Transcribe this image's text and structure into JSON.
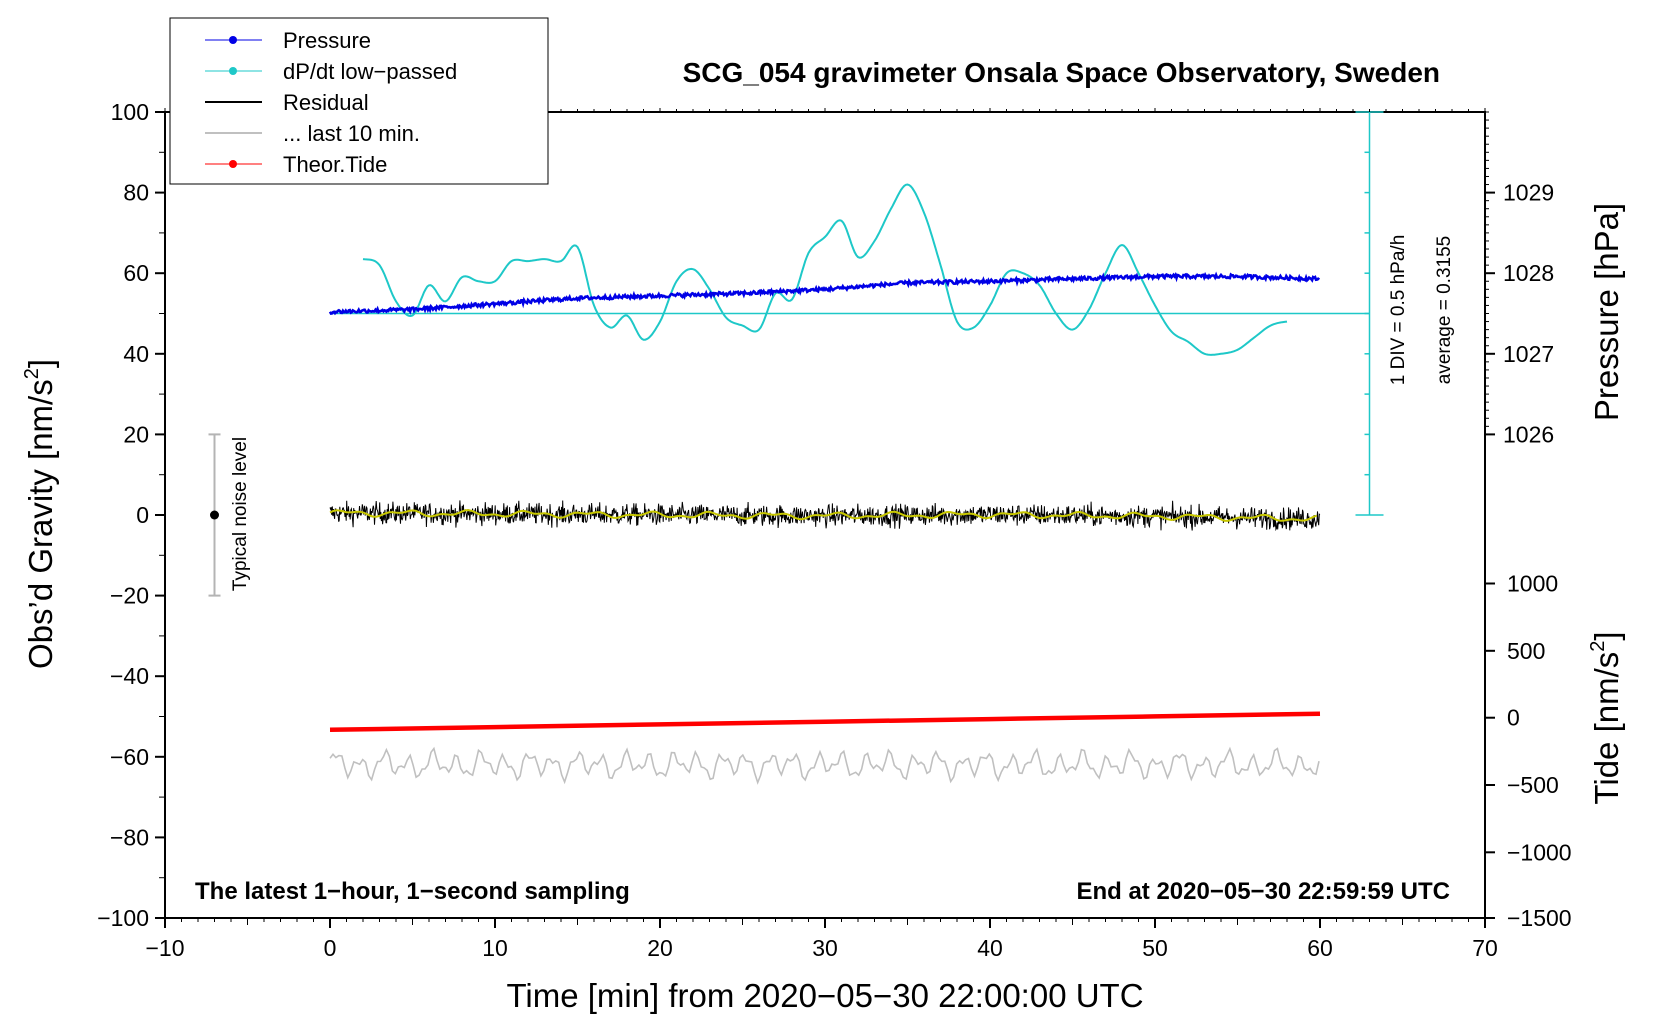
{
  "chart_data": {
    "type": "line",
    "title": "SCG_054 gravimeter Onsala Space Observatory, Sweden",
    "xlabel": "Time [min] from 2020−05−30 22:00:00 UTC",
    "ylabel_left": "Obs’d Gravity [nm/s²]",
    "ylabel_right_pressure": "Pressure [hPa]",
    "ylabel_right_tide": "Tide [nm/s²]",
    "xlim": [
      -10,
      70
    ],
    "ylim": [
      -100,
      100
    ],
    "x_ticks": [
      "−10",
      "0",
      "10",
      "20",
      "30",
      "40",
      "50",
      "60",
      "70"
    ],
    "y_ticks": [
      "100",
      "80",
      "60",
      "40",
      "20",
      "0",
      "−20",
      "−40",
      "−60",
      "−80",
      "−100"
    ],
    "pressure_axis": {
      "ticks": [
        "1029",
        "1028",
        "1027",
        "1026"
      ],
      "values": [
        1029,
        1028,
        1027,
        1026
      ],
      "gravity_equivalent": [
        80,
        60,
        40,
        20
      ]
    },
    "tide_axis": {
      "ticks": [
        "1000",
        "500",
        "0",
        "−500",
        "−1000",
        "−1500"
      ],
      "values": [
        1000,
        500,
        0,
        -500,
        -1000,
        -1500
      ],
      "gravity_equivalent": [
        -17,
        -33.7,
        -50.3,
        -67,
        -83.7,
        -100
      ]
    },
    "legend": {
      "location": "top-left",
      "entries": [
        "Pressure",
        "dP/dt low−passed",
        "Residual",
        "... last 10 min.",
        "Theor.Tide"
      ]
    },
    "colors": {
      "pressure": "#0000e6",
      "dpdt": "#1ec8c8",
      "residual": "#000000",
      "residual_smooth": "#c8c800",
      "last10": "#c0c0c0",
      "tide": "#ff0000",
      "noise_bar": "#b4b4b4"
    },
    "series": [
      {
        "name": "Pressure",
        "unit": "hPa",
        "x": [
          0,
          5,
          10,
          15,
          20,
          25,
          30,
          35,
          40,
          45,
          50,
          55,
          60
        ],
        "values": [
          1027.52,
          1027.55,
          1027.62,
          1027.69,
          1027.72,
          1027.75,
          1027.8,
          1027.88,
          1027.9,
          1027.93,
          1027.96,
          1027.96,
          1027.93
        ]
      },
      {
        "name": "dP/dt low−passed",
        "unit": "nm/s² equiv.",
        "x": [
          2,
          3,
          4,
          5,
          6,
          7,
          8,
          9,
          10,
          11,
          12,
          13,
          14,
          15,
          16,
          17,
          18,
          19,
          20,
          21,
          22,
          23,
          24,
          25,
          26,
          27,
          28,
          29,
          30,
          31,
          32,
          33,
          34,
          35,
          36,
          37,
          38,
          39,
          40,
          41,
          42,
          43,
          44,
          45,
          46,
          47,
          48,
          49,
          50,
          51,
          52,
          53,
          54,
          55,
          56,
          57,
          58
        ],
        "values": [
          63.5,
          62,
          53,
          49.5,
          57,
          53,
          59,
          58,
          58,
          63,
          63,
          63.5,
          63,
          66.5,
          52,
          46.5,
          49.5,
          43.5,
          48,
          58,
          61,
          56,
          49,
          47,
          46,
          55,
          53.5,
          65,
          69,
          73,
          64,
          68,
          76,
          82,
          75,
          62,
          48,
          46.5,
          52,
          60,
          60,
          57,
          50,
          46,
          51,
          60,
          67,
          60,
          52,
          45.5,
          43,
          40,
          40,
          41,
          44,
          47,
          48
        ]
      },
      {
        "name": "Residual",
        "unit": "nm/s²",
        "x": [
          0,
          10,
          20,
          30,
          40,
          50,
          60
        ],
        "values": [
          0.5,
          0.3,
          0,
          -0.2,
          0.1,
          -0.3,
          -1.0
        ]
      },
      {
        "name": "... last 10 min.",
        "unit": "nm/s²",
        "x": [
          0,
          10,
          20,
          30,
          40,
          50,
          60
        ],
        "values": [
          -62,
          -62,
          -62,
          -62,
          -62,
          -62,
          -62
        ]
      },
      {
        "name": "Theor.Tide",
        "unit": "nm/s² (tide axis)",
        "x": [
          0,
          10,
          20,
          30,
          40,
          50,
          60
        ],
        "values": [
          -90,
          -70,
          -50,
          -30,
          -10,
          10,
          30
        ]
      }
    ],
    "dpdt_scale": {
      "label_div": "1 DIV = 0.5 hPa/h",
      "label_avg": "average = 0.3155",
      "baseline_gravity": 50,
      "axis_x": 63
    },
    "noise_bar": {
      "label": "Typical noise level",
      "x": -7,
      "low": -20,
      "high": 20
    },
    "annotations": {
      "bottom_left": "The latest 1−hour, 1−second sampling",
      "bottom_right": "End at 2020−05−30 22:59:59 UTC"
    }
  }
}
